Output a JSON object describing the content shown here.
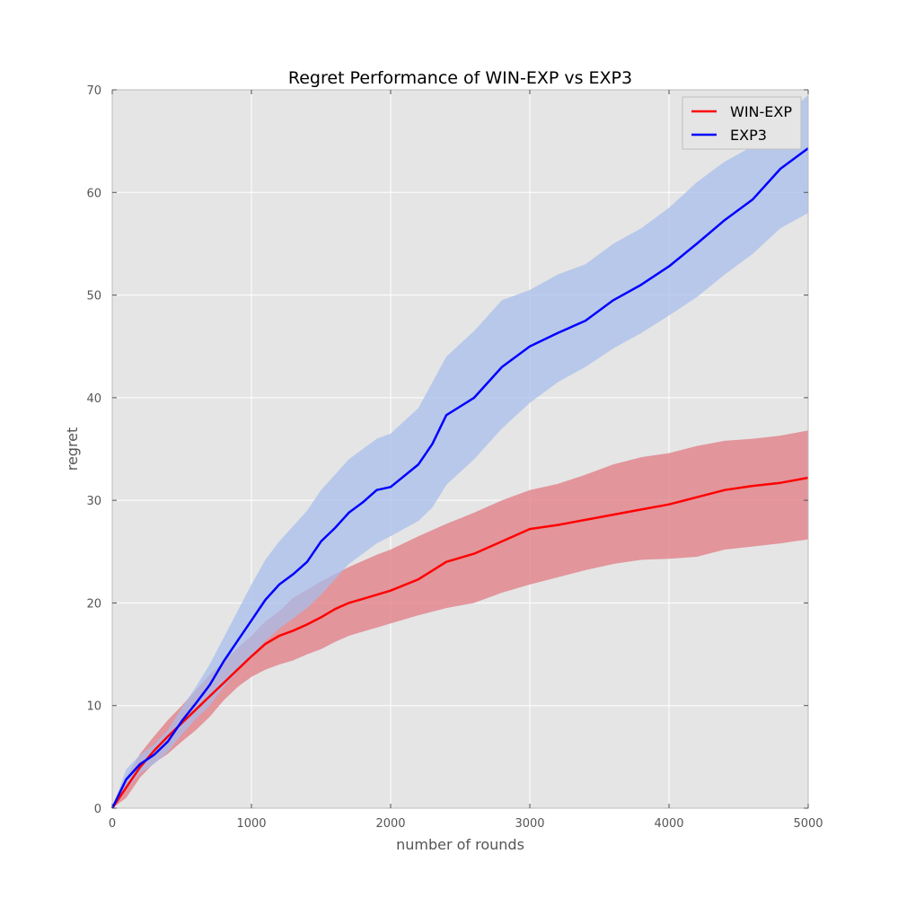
{
  "chart_data": {
    "type": "line",
    "title": "Regret Performance of WIN-EXP vs EXP3",
    "xlabel": "number of rounds",
    "ylabel": "regret",
    "xlim": [
      0,
      5000
    ],
    "ylim": [
      0,
      70
    ],
    "xticks": [
      0,
      1000,
      2000,
      3000,
      4000,
      5000
    ],
    "yticks": [
      0,
      10,
      20,
      30,
      40,
      50,
      60,
      70
    ],
    "grid": true,
    "legend_position": "top-right",
    "background_color": "#e5e5e5",
    "series": [
      {
        "name": "WIN-EXP",
        "color": "#ff0000",
        "band_color": "#e07a82",
        "x": [
          0,
          100,
          200,
          300,
          400,
          500,
          600,
          700,
          800,
          900,
          1000,
          1100,
          1200,
          1300,
          1400,
          1500,
          1600,
          1700,
          1800,
          1900,
          2000,
          2200,
          2400,
          2600,
          2800,
          3000,
          3200,
          3400,
          3600,
          3800,
          4000,
          4200,
          4400,
          4600,
          4800,
          5000
        ],
        "mean": [
          0,
          2.0,
          4.0,
          5.6,
          7.0,
          8.3,
          9.6,
          10.9,
          12.2,
          13.5,
          14.8,
          16.0,
          16.8,
          17.3,
          17.9,
          18.6,
          19.4,
          20.0,
          20.4,
          20.8,
          21.2,
          22.3,
          24.0,
          24.8,
          26.0,
          27.2,
          27.6,
          28.1,
          28.6,
          29.1,
          29.6,
          30.3,
          31.0,
          31.4,
          31.7,
          32.2
        ],
        "lower": [
          0,
          1.0,
          3.0,
          4.4,
          5.3,
          6.5,
          7.6,
          8.9,
          10.5,
          11.8,
          12.8,
          13.5,
          14.0,
          14.4,
          15.0,
          15.5,
          16.2,
          16.8,
          17.2,
          17.6,
          18.0,
          18.8,
          19.5,
          20.0,
          21.0,
          21.8,
          22.5,
          23.2,
          23.8,
          24.2,
          24.3,
          24.5,
          25.2,
          25.5,
          25.8,
          26.2
        ],
        "upper": [
          0,
          3.0,
          5.3,
          7.0,
          8.6,
          10.0,
          11.5,
          13.0,
          14.3,
          15.6,
          16.8,
          18.2,
          19.2,
          20.5,
          21.3,
          22.1,
          22.8,
          23.5,
          24.1,
          24.7,
          25.2,
          26.5,
          27.7,
          28.8,
          30.0,
          31.0,
          31.6,
          32.5,
          33.5,
          34.2,
          34.6,
          35.3,
          35.8,
          36.0,
          36.3,
          36.8
        ]
      },
      {
        "name": "EXP3",
        "color": "#0000ff",
        "band_color": "#a8bdeb",
        "x": [
          0,
          100,
          200,
          300,
          400,
          500,
          600,
          700,
          800,
          900,
          1000,
          1100,
          1200,
          1300,
          1400,
          1500,
          1600,
          1700,
          1800,
          1900,
          2000,
          2200,
          2300,
          2400,
          2600,
          2800,
          3000,
          3200,
          3400,
          3600,
          3800,
          4000,
          4200,
          4400,
          4600,
          4800,
          5000
        ],
        "mean": [
          0,
          2.8,
          4.3,
          5.2,
          6.5,
          8.5,
          10.2,
          12.0,
          14.3,
          16.3,
          18.3,
          20.3,
          21.8,
          22.8,
          24.0,
          26.0,
          27.3,
          28.8,
          29.8,
          31.0,
          31.3,
          33.5,
          35.5,
          38.3,
          40.0,
          43.0,
          45.0,
          46.3,
          47.5,
          49.5,
          51.0,
          52.8,
          55.0,
          57.3,
          59.3,
          62.3,
          64.3
        ],
        "lower": [
          0,
          1.8,
          3.4,
          4.3,
          5.5,
          7.2,
          8.7,
          10.0,
          11.8,
          13.3,
          14.8,
          16.3,
          17.5,
          18.5,
          19.5,
          20.8,
          22.3,
          23.8,
          24.8,
          25.8,
          26.5,
          28.0,
          29.3,
          31.5,
          34.0,
          37.0,
          39.5,
          41.5,
          43.0,
          44.8,
          46.3,
          48.0,
          49.8,
          52.0,
          54.0,
          56.5,
          58.0
        ],
        "upper": [
          0,
          3.8,
          5.2,
          6.2,
          7.6,
          9.8,
          11.8,
          14.0,
          16.6,
          19.2,
          21.8,
          24.2,
          26.0,
          27.5,
          29.0,
          31.0,
          32.5,
          34.0,
          35.0,
          36.0,
          36.5,
          39.0,
          41.5,
          44.0,
          46.5,
          49.5,
          50.5,
          52.0,
          53.0,
          55.0,
          56.5,
          58.5,
          61.0,
          63.0,
          64.5,
          67.0,
          69.5
        ]
      }
    ]
  }
}
